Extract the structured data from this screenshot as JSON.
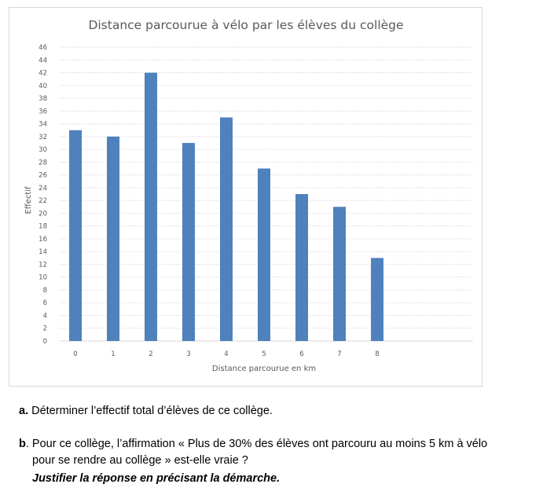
{
  "chart_data": {
    "type": "bar",
    "title": "Distance parcourue à vélo par les élèves du collège",
    "xlabel": "Distance parcourue en km",
    "ylabel": "Effectif",
    "categories": [
      "0",
      "1",
      "2",
      "3",
      "4",
      "5",
      "6",
      "7",
      "8"
    ],
    "values": [
      33,
      32,
      42,
      31,
      35,
      27,
      23,
      21,
      13
    ],
    "ylim": [
      0,
      46
    ],
    "yticks": [
      0,
      2,
      4,
      6,
      8,
      10,
      12,
      14,
      16,
      18,
      20,
      22,
      24,
      26,
      28,
      30,
      32,
      34,
      36,
      38,
      40,
      42,
      44,
      46
    ],
    "grid": true,
    "legend": "none",
    "bar_color": "#4f81bd"
  },
  "questions": {
    "a_label": "a.",
    "a_text": " Déterminer l’effectif total d’élèves de ce collège.",
    "b_label": "b",
    "b_text_line1": ". Pour ce collège, l’affirmation « Plus de 30% des élèves ont parcouru au moins 5 km à vélo",
    "b_text_line2": "pour se rendre au collège » est-elle vraie ?",
    "justify": "Justifier la réponse en précisant la démarche."
  }
}
